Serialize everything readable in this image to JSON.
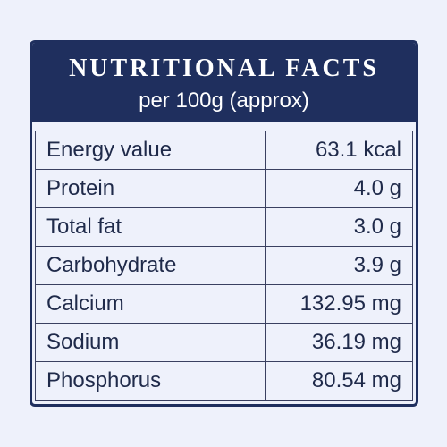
{
  "header": {
    "title": "NUTRITIONAL FACTS",
    "subtitle": "per 100g (approx)"
  },
  "table": {
    "rows": [
      [
        "Energy value",
        "63.1 kcal"
      ],
      [
        "Protein",
        "4.0 g"
      ],
      [
        "Total fat",
        "3.0 g"
      ],
      [
        "Carbohydrate",
        "3.9 g"
      ],
      [
        "Calcium",
        "132.95 mg"
      ],
      [
        "Sodium",
        "36.19 mg"
      ],
      [
        "Phosphorus",
        "80.54 mg"
      ]
    ]
  }
}
